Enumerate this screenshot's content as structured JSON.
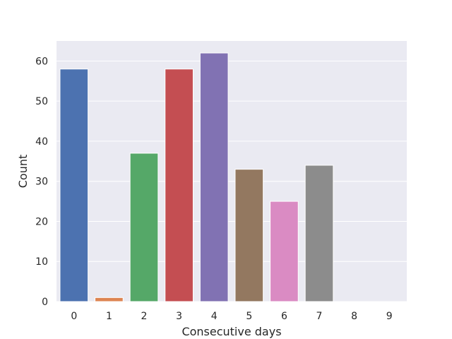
{
  "chart_data": {
    "type": "bar",
    "title": "",
    "xlabel": "Consecutive days",
    "ylabel": "Count",
    "categories": [
      "0",
      "1",
      "2",
      "3",
      "4",
      "5",
      "6",
      "7",
      "8",
      "9"
    ],
    "values": [
      58,
      1,
      37,
      58,
      62,
      33,
      25,
      34,
      0,
      0
    ],
    "ylim": [
      0,
      65
    ],
    "yticks": [
      0,
      10,
      20,
      30,
      40,
      50,
      60
    ],
    "grid": true,
    "background": "#eaeaf2",
    "grid_color": "#ffffff",
    "colors": [
      "#4c72b0",
      "#dd8452",
      "#55a868",
      "#c44e52",
      "#8172b3",
      "#937860",
      "#da8bc3",
      "#8c8c8c",
      "#ccb974",
      "#64b5cd"
    ]
  }
}
